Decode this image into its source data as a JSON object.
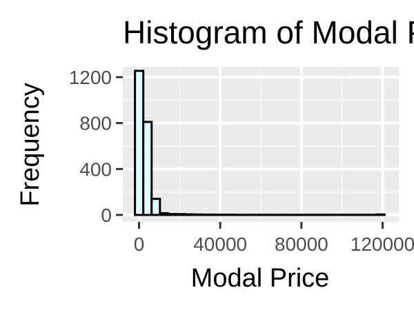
{
  "chart_data": {
    "type": "bar",
    "title": "Histogram of Modal Price",
    "xlabel": "Modal Price",
    "ylabel": "Frequency",
    "x_ticks": [
      0,
      40000,
      80000,
      120000
    ],
    "x_tick_labels": [
      "0",
      "40000",
      "80000",
      "120000"
    ],
    "y_ticks": [
      0,
      400,
      800,
      1200
    ],
    "y_tick_labels": [
      "0",
      "400",
      "800",
      "1200"
    ],
    "xlim": [
      -8000,
      128000
    ],
    "ylim": [
      -60,
      1290
    ],
    "grid": true,
    "legend": "none",
    "bins": {
      "start": -2000,
      "width": 4100
    },
    "counts": [
      1255,
      810,
      140,
      15,
      8,
      7,
      5,
      4,
      3,
      2,
      2,
      2,
      1,
      1,
      1,
      1,
      1,
      1,
      1,
      1,
      1,
      1,
      1,
      1,
      1,
      1,
      1,
      1,
      1,
      4
    ]
  },
  "colors": {
    "panel_background": "#ebebeb",
    "grid_major": "#ffffff",
    "grid_minor": "#f5f5f5",
    "bar_fill": "#e0ffff",
    "bar_outline": "#000000",
    "tick_mark": "#333333"
  }
}
